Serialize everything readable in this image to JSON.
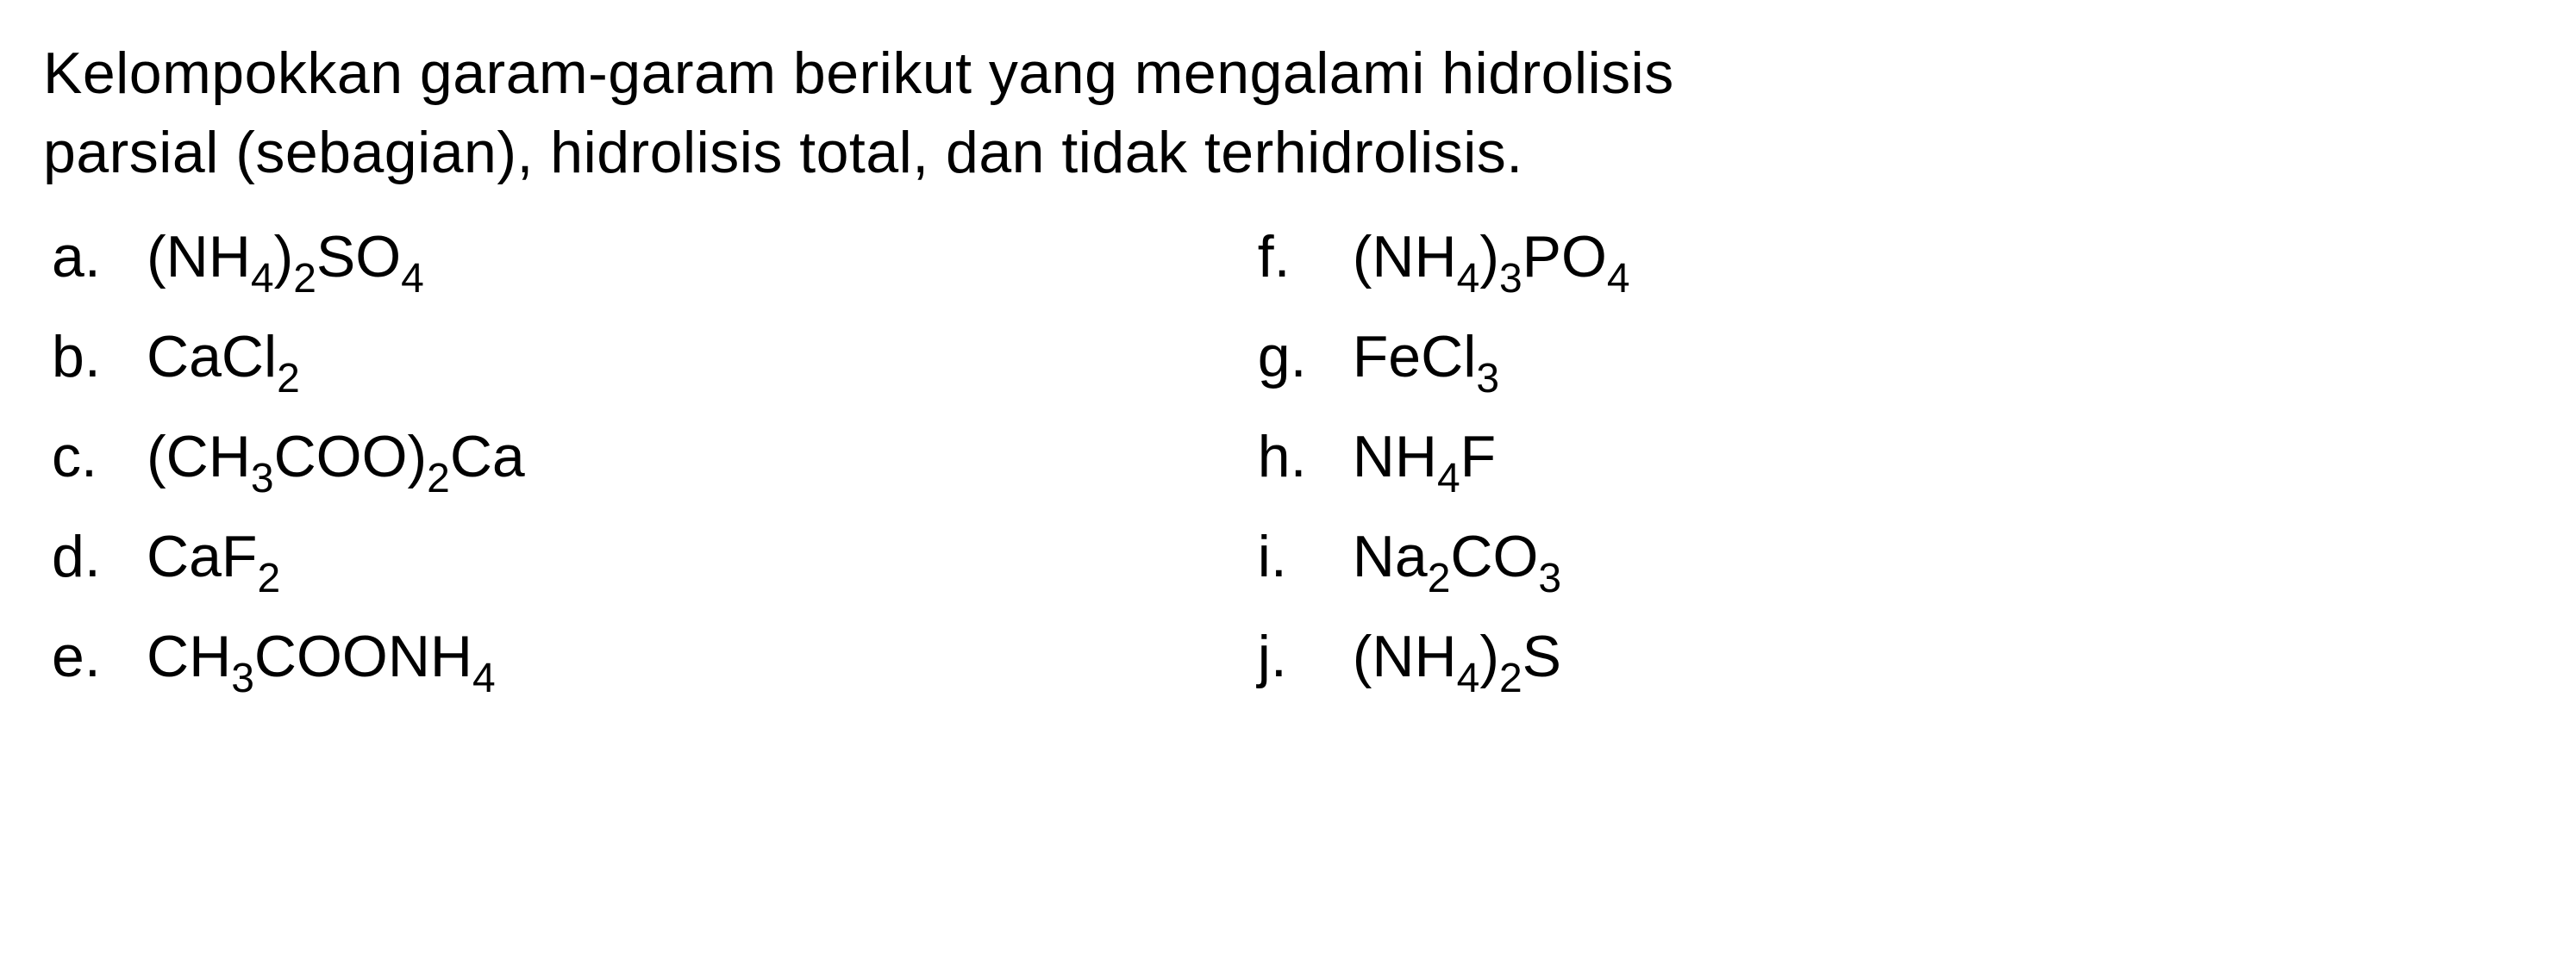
{
  "question": {
    "line1": "Kelompokkan garam-garam berikut yang mengalami hidrolisis",
    "line2": "parsial (sebagian), hidrolisis total, dan tidak terhidrolisis."
  },
  "columns": {
    "left": [
      {
        "letter": "a.",
        "formula_html": "(NH<sub>4</sub>)<sub>2</sub>SO<sub>4</sub>"
      },
      {
        "letter": "b.",
        "formula_html": "CaCl<sub>2</sub>"
      },
      {
        "letter": "c.",
        "formula_html": "(CH<sub>3</sub>COO)<sub>2</sub>Ca"
      },
      {
        "letter": "d.",
        "formula_html": "CaF<sub>2</sub>"
      },
      {
        "letter": "e.",
        "formula_html": "CH<sub>3</sub>COONH<sub>4</sub>"
      }
    ],
    "right": [
      {
        "letter": "f.",
        "formula_html": "(NH<sub>4</sub>)<sub>3</sub>PO<sub>4</sub>"
      },
      {
        "letter": "g.",
        "formula_html": "FeCl<sub>3</sub>"
      },
      {
        "letter": "h.",
        "formula_html": "NH<sub>4</sub>F"
      },
      {
        "letter": "i.",
        "formula_html": "Na<sub>2</sub>CO<sub>3</sub>"
      },
      {
        "letter": "j.",
        "formula_html": "(NH<sub>4</sub>)<sub>2</sub>S"
      }
    ]
  },
  "styling": {
    "background_color": "#ffffff",
    "text_color": "#000000",
    "font_family": "Arial",
    "question_font_size": 68,
    "option_font_size": 68,
    "subscript_font_size": 48
  }
}
